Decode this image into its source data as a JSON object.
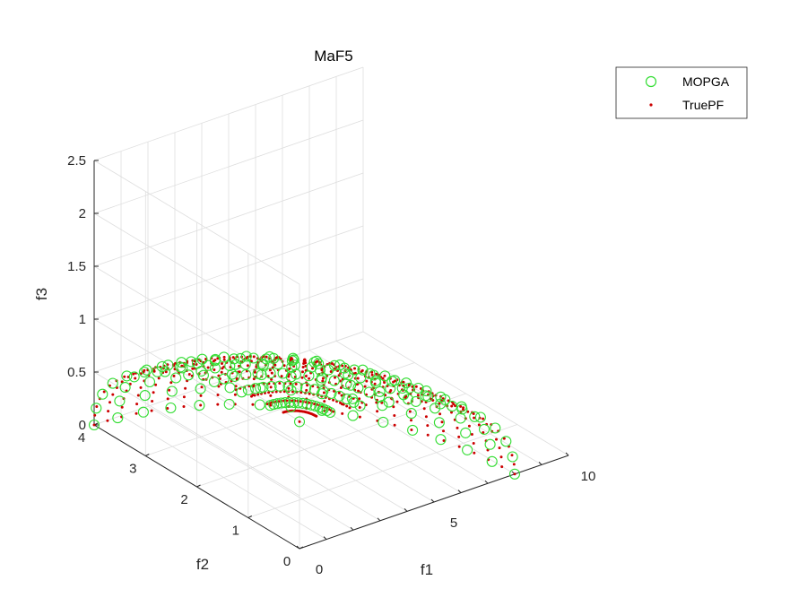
{
  "chart_data": {
    "type": "scatter",
    "dimensions": 3,
    "title": "MaF5",
    "xlabel": "f1",
    "ylabel": "f2",
    "zlabel": "f3",
    "xlim": [
      0,
      10
    ],
    "ylim": [
      0,
      4
    ],
    "zlim": [
      0,
      2.5
    ],
    "xticks": [
      "0",
      "5",
      "10"
    ],
    "yticks": [
      "0",
      "1",
      "2",
      "3",
      "4"
    ],
    "zticks": [
      "0",
      "0.5",
      "1",
      "1.5",
      "2",
      "2.5"
    ],
    "grid": true,
    "legend_position": "top-right",
    "surface": {
      "description": "quarter ellipsoid (f1/8)^2 + (f2/4)^2 + (f3/1.2)^2 = 1, f1,f2,f3 >= 0",
      "f1_max": 8,
      "f2_max": 4,
      "f3_max": 1.2
    },
    "series": [
      {
        "name": "MOPGA",
        "marker": "open-circle",
        "color": "#33dd33",
        "azimuth_steps": 15,
        "polar_steps": 11
      },
      {
        "name": "TruePF",
        "marker": "dot",
        "color": "#cc0000",
        "azimuth_steps": 26,
        "polar_steps": 20
      }
    ]
  }
}
